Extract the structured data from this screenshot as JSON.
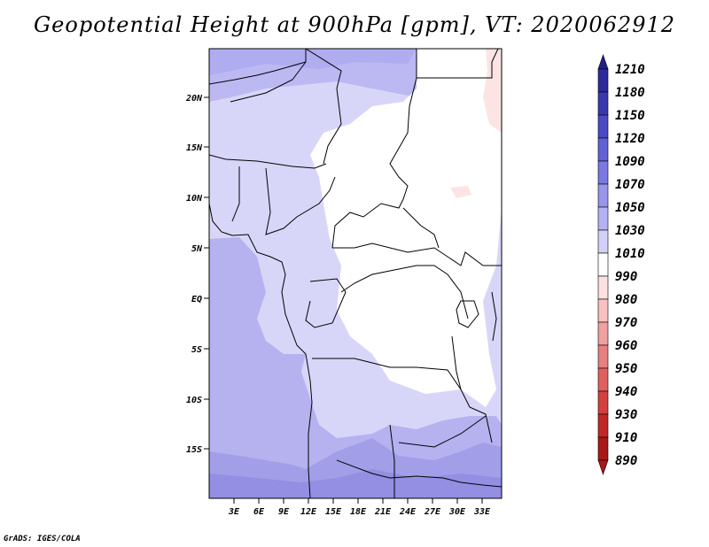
{
  "title": "Geopotential Height at 900hPa [gpm], VT: 2020062912",
  "credit": "GrADS: IGES/COLA",
  "map": {
    "lat_ticks": [
      "20N",
      "15N",
      "10N",
      "5N",
      "EQ",
      "5S",
      "10S",
      "15S"
    ],
    "lon_ticks": [
      "3E",
      "6E",
      "9E",
      "12E",
      "15E",
      "18E",
      "21E",
      "24E",
      "27E",
      "30E",
      "33E"
    ]
  },
  "colorbar": {
    "levels": [
      "1210",
      "1180",
      "1150",
      "1120",
      "1090",
      "1070",
      "1050",
      "1030",
      "1010",
      "990",
      "980",
      "970",
      "960",
      "950",
      "940",
      "930",
      "910",
      "890"
    ],
    "colors": [
      "#241e8c",
      "#2d2a9e",
      "#3a38b0",
      "#4a4ac4",
      "#6262d6",
      "#7a78e2",
      "#9896ec",
      "#b4b2f2",
      "#d2d0f8",
      "#ffffff",
      "#fde0e0",
      "#f8c0c0",
      "#f0a0a0",
      "#e88080",
      "#e06060",
      "#d44040",
      "#c02828",
      "#a81818"
    ]
  }
}
